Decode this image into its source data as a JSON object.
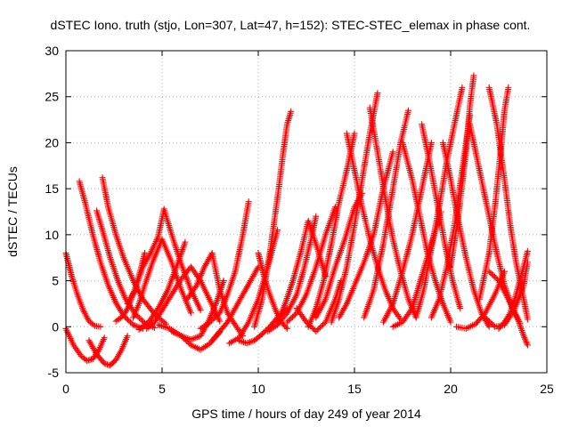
{
  "chart_data": {
    "type": "scatter",
    "title": "dSTEC Iono. truth (stjo, Lon=307, Lat=47, h=152): STEC-STEC_elemax in phase cont.",
    "xlabel": "GPS time / hours of day 249 of year 2014",
    "ylabel": "dSTEC  / TECUs",
    "xlim": [
      0,
      25
    ],
    "ylim": [
      -5,
      30
    ],
    "xticks": [
      "0",
      "5",
      "10",
      "15",
      "20",
      "25"
    ],
    "yticks": [
      "-5",
      "0",
      "5",
      "10",
      "15",
      "20",
      "25",
      "30"
    ],
    "grid": true,
    "marker": "+",
    "color": "#ff0000",
    "series": [
      {
        "x": [
          0,
          0.3,
          0.6,
          0.9,
          1.2,
          1.5,
          1.8
        ],
        "y": [
          8,
          5.5,
          3.5,
          1.8,
          0.6,
          0.1,
          0
        ]
      },
      {
        "x": [
          0,
          0.4,
          0.8,
          1.1,
          1.4,
          1.7,
          2.0
        ],
        "y": [
          -0.2,
          -2.0,
          -3.2,
          -3.7,
          -3.5,
          -2.6,
          -1.2
        ]
      },
      {
        "x": [
          1.2,
          1.6,
          2.0,
          2.3,
          2.6,
          2.9,
          3.2
        ],
        "y": [
          -1.5,
          -3.0,
          -4.0,
          -4.2,
          -3.6,
          -2.5,
          -1.0
        ]
      },
      {
        "x": [
          0.7,
          1.0,
          1.4,
          1.8,
          2.2,
          2.6,
          3.0,
          3.5,
          4.0
        ],
        "y": [
          15.8,
          13.5,
          10.0,
          7.0,
          4.5,
          2.6,
          1.2,
          0.2,
          -0.2
        ]
      },
      {
        "x": [
          1.6,
          1.9,
          2.3,
          2.7,
          3.1,
          3.6,
          4.1,
          4.6
        ],
        "y": [
          12.6,
          10.5,
          7.5,
          5.0,
          3.0,
          1.4,
          0.4,
          -0.1
        ]
      },
      {
        "x": [
          1.9,
          2.2,
          2.6,
          3.0,
          3.5,
          4.0,
          4.6,
          5.2
        ],
        "y": [
          16.2,
          13.0,
          10.0,
          7.5,
          5.0,
          3.0,
          1.4,
          0.3
        ]
      },
      {
        "x": [
          2.6,
          3.0,
          3.3,
          3.6,
          3.9,
          4.1
        ],
        "y": [
          0.6,
          1.2,
          2.4,
          4.2,
          6.3,
          8.0
        ]
      },
      {
        "x": [
          3.5,
          3.8,
          4.1,
          4.5,
          5.0,
          5.5,
          6.0,
          6.5
        ],
        "y": [
          1.0,
          2.5,
          4.5,
          7.0,
          9.5,
          7.0,
          4.0,
          1.5
        ]
      },
      {
        "x": [
          3.2,
          3.6,
          4.0,
          4.4,
          4.8,
          5.1,
          5.5,
          6.0,
          6.5,
          7.0
        ],
        "y": [
          2.5,
          4.0,
          6.5,
          8.0,
          9.8,
          12.8,
          10.0,
          6.8,
          4.0,
          1.8
        ]
      },
      {
        "x": [
          4.2,
          4.6,
          5.0,
          5.5,
          6.0,
          6.5,
          7.0,
          7.5,
          8.0
        ],
        "y": [
          -0.2,
          0.5,
          1.8,
          3.5,
          5.2,
          6.5,
          5.0,
          2.8,
          0.6
        ]
      },
      {
        "x": [
          3.8,
          4.3,
          4.8,
          5.3,
          5.8,
          6.2
        ],
        "y": [
          -0.3,
          0.5,
          2.0,
          4.0,
          6.8,
          9.2
        ]
      },
      {
        "x": [
          4.8,
          5.4,
          6.0,
          6.5,
          7.0,
          7.5,
          8.0
        ],
        "y": [
          0.2,
          -0.2,
          -1.0,
          -2.0,
          -2.5,
          -1.8,
          -0.6
        ]
      },
      {
        "x": [
          5.5,
          6.0,
          6.5,
          7.0,
          7.4,
          7.8,
          8.2
        ],
        "y": [
          -0.5,
          -1.0,
          -1.4,
          -1.0,
          0.5,
          2.5,
          5.0
        ]
      },
      {
        "x": [
          6.3,
          6.8,
          7.2,
          7.6,
          8.0,
          8.4,
          8.8,
          9.2
        ],
        "y": [
          3.0,
          4.5,
          6.5,
          8.0,
          4.0,
          1.5,
          0.2,
          -1.0
        ]
      },
      {
        "x": [
          7.0,
          7.5,
          8.0,
          8.4,
          8.8,
          9.2,
          9.5
        ],
        "y": [
          -0.2,
          0.5,
          1.5,
          3.5,
          6.0,
          10.0,
          13.6
        ]
      },
      {
        "x": [
          7.6,
          8.0,
          8.4,
          8.8,
          9.2,
          9.6,
          10.0
        ],
        "y": [
          -1.5,
          -0.5,
          0.5,
          2.0,
          3.5,
          5.0,
          6.5
        ]
      },
      {
        "x": [
          9.0,
          9.4,
          9.8,
          10.2,
          10.6,
          11.0,
          11.5
        ],
        "y": [
          -1.5,
          -1.8,
          -1.5,
          -0.8,
          0.0,
          1.0,
          2.0
        ]
      },
      {
        "x": [
          8.5,
          9.0,
          9.5,
          10.0,
          10.5,
          11.0
        ],
        "y": [
          -1.8,
          -1.2,
          0.5,
          3.0,
          6.5,
          10.5
        ]
      },
      {
        "x": [
          9.8,
          10.2,
          10.6,
          11.0,
          11.3,
          11.5,
          11.7
        ],
        "y": [
          0.0,
          3.0,
          8.0,
          14.0,
          19.0,
          22.0,
          23.4
        ]
      },
      {
        "x": [
          10.0,
          10.3,
          10.6,
          10.9,
          11.2,
          11.5
        ],
        "y": [
          8.0,
          5.5,
          3.5,
          1.8,
          0.5,
          -0.2
        ]
      },
      {
        "x": [
          10.5,
          11.0,
          11.5,
          12.0,
          12.4,
          12.8,
          13.0
        ],
        "y": [
          -0.5,
          0.2,
          1.5,
          3.5,
          6.5,
          10.0,
          12.0
        ]
      },
      {
        "x": [
          11.0,
          11.4,
          11.8,
          12.2,
          12.6,
          13.0,
          13.5
        ],
        "y": [
          0.5,
          2.5,
          5.0,
          8.0,
          11.5,
          9.0,
          5.5
        ]
      },
      {
        "x": [
          11.5,
          12.0,
          12.5,
          13.0,
          13.5,
          14.0
        ],
        "y": [
          0.5,
          1.5,
          3.5,
          6.5,
          10.0,
          13.0
        ]
      },
      {
        "x": [
          12.0,
          12.5,
          13.0,
          13.5,
          14.0,
          14.3
        ],
        "y": [
          2.0,
          0.5,
          -0.5,
          0.5,
          3.0,
          5.0
        ]
      },
      {
        "x": [
          12.6,
          13.0,
          13.4,
          13.8,
          14.2,
          14.6,
          15.0
        ],
        "y": [
          0.0,
          2.0,
          5.0,
          9.0,
          13.5,
          17.0,
          21.0
        ]
      },
      {
        "x": [
          13.0,
          13.5,
          14.0,
          14.5,
          15.0,
          15.4
        ],
        "y": [
          1.0,
          3.0,
          6.5,
          9.5,
          13.0,
          14.5
        ]
      },
      {
        "x": [
          13.8,
          14.2,
          14.6,
          15.0,
          15.4,
          15.8,
          16.2
        ],
        "y": [
          0.5,
          3.0,
          6.5,
          11.0,
          16.0,
          21.0,
          25.4
        ]
      },
      {
        "x": [
          14.2,
          14.6,
          15.0,
          15.5,
          16.0,
          16.5,
          17.0
        ],
        "y": [
          1.0,
          2.5,
          4.5,
          7.0,
          10.0,
          15.0,
          19.0
        ]
      },
      {
        "x": [
          14.6,
          15.0,
          15.4,
          15.8,
          16.2,
          16.6,
          17.0,
          17.4
        ],
        "y": [
          21.0,
          17.0,
          13.0,
          9.5,
          6.5,
          4.0,
          2.0,
          0.8
        ]
      },
      {
        "x": [
          15.5,
          16.0,
          16.5,
          17.0,
          17.4,
          17.8
        ],
        "y": [
          1.0,
          4.0,
          9.0,
          15.0,
          20.0,
          23.5
        ]
      },
      {
        "x": [
          15.8,
          16.2,
          16.6,
          17.0,
          17.4,
          17.8,
          18.2
        ],
        "y": [
          23.8,
          19.0,
          14.0,
          9.5,
          6.0,
          3.0,
          1.0
        ]
      },
      {
        "x": [
          16.5,
          17.0,
          17.5,
          18.0,
          18.5,
          19.0
        ],
        "y": [
          0.5,
          2.5,
          6.0,
          10.0,
          15.0,
          20.0
        ]
      },
      {
        "x": [
          17.0,
          17.5,
          18.0,
          18.5,
          19.0,
          19.5
        ],
        "y": [
          0.0,
          0.5,
          2.0,
          5.5,
          9.0,
          12.5
        ]
      },
      {
        "x": [
          17.5,
          18.0,
          18.4,
          18.8,
          19.2,
          19.6,
          20.0
        ],
        "y": [
          20.0,
          16.0,
          12.0,
          8.0,
          5.0,
          2.5,
          0.5
        ]
      },
      {
        "x": [
          18.2,
          18.6,
          19.0,
          19.4,
          19.8,
          20.2,
          20.6
        ],
        "y": [
          1.0,
          4.0,
          8.5,
          13.0,
          18.0,
          22.0,
          26.0
        ]
      },
      {
        "x": [
          18.5,
          18.9,
          19.3,
          19.7,
          20.1,
          20.5
        ],
        "y": [
          22.0,
          18.0,
          13.5,
          9.0,
          5.0,
          2.0
        ]
      },
      {
        "x": [
          19.0,
          19.4,
          19.8,
          20.2,
          20.6,
          21.0
        ],
        "y": [
          1.0,
          3.0,
          6.5,
          11.0,
          17.0,
          23.0
        ]
      },
      {
        "x": [
          19.6,
          20.0,
          20.4,
          20.8,
          21.2,
          21.6,
          22.0
        ],
        "y": [
          20.0,
          16.0,
          11.5,
          7.5,
          4.0,
          1.5,
          0.0
        ]
      },
      {
        "x": [
          20.0,
          20.4,
          20.8,
          21.0,
          21.2
        ],
        "y": [
          6.5,
          12.0,
          19.0,
          24.0,
          27.3
        ]
      },
      {
        "x": [
          20.3,
          20.8,
          21.3,
          21.8,
          22.3,
          22.8
        ],
        "y": [
          0.0,
          -0.2,
          0.3,
          1.5,
          3.5,
          6.0
        ]
      },
      {
        "x": [
          21.0,
          21.5,
          22.0,
          22.4,
          22.8,
          23.2,
          23.6
        ],
        "y": [
          22.0,
          17.0,
          12.0,
          8.0,
          4.5,
          2.0,
          0.4
        ]
      },
      {
        "x": [
          21.5,
          22.0,
          22.3,
          22.6,
          22.8,
          23.0
        ],
        "y": [
          3.0,
          8.0,
          13.0,
          19.0,
          23.5,
          26.0
        ]
      },
      {
        "x": [
          22.0,
          22.4,
          22.8,
          23.1,
          23.4,
          23.8,
          24.0
        ],
        "y": [
          26.0,
          22.0,
          16.0,
          11.0,
          7.0,
          3.0,
          0.8
        ]
      },
      {
        "x": [
          22.5,
          22.8,
          23.1,
          23.4,
          23.7,
          24.0
        ],
        "y": [
          -0.2,
          0.5,
          1.5,
          3.5,
          5.8,
          8.2
        ]
      },
      {
        "x": [
          21.8,
          22.3,
          22.8,
          23.3,
          23.8,
          24.0
        ],
        "y": [
          1.0,
          0.0,
          0.2,
          1.8,
          4.5,
          7.0
        ]
      },
      {
        "x": [
          22.0,
          22.5,
          23.0,
          23.5,
          23.8,
          24.0
        ],
        "y": [
          6.0,
          5.0,
          3.0,
          0.8,
          -1.0,
          -2.0
        ]
      }
    ]
  }
}
